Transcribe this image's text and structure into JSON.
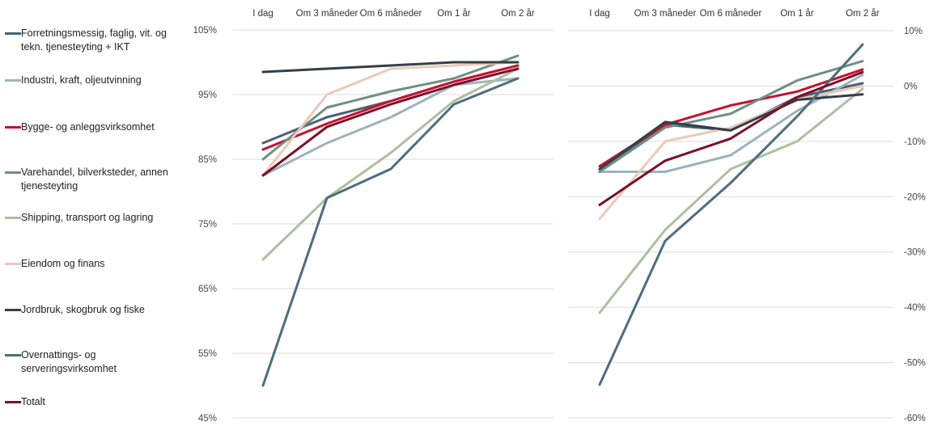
{
  "chart_data": [
    {
      "type": "line",
      "categories": [
        "I dag",
        "Om 3 måneder",
        "Om 6 måneder",
        "Om 1 år",
        "Om 2 år"
      ],
      "ylim": [
        45,
        105
      ],
      "yticks": [
        "45%",
        "55%",
        "65%",
        "75%",
        "85%",
        "95%",
        "105%"
      ],
      "ytick_values": [
        45,
        55,
        65,
        75,
        85,
        95,
        105
      ],
      "grid": true,
      "series": [
        {
          "name": "Forretningsmessig, faglig, vit. og tekn. tjenesteyting + IKT",
          "color": "#4b6173",
          "values": [
            87.5,
            91.5,
            94.0,
            97.0,
            99.5
          ]
        },
        {
          "name": "Industri, kraft, oljeutvinning",
          "color": "#9db3bd",
          "values": [
            82.5,
            87.5,
            91.5,
            96.5,
            97.5
          ]
        },
        {
          "name": "Bygge- og anleggsvirksomhet",
          "color": "#c8102e",
          "values": [
            86.5,
            90.5,
            94.0,
            97.0,
            99.5
          ]
        },
        {
          "name": "Varehandel, bilverksteder, annen tjenesteyting",
          "color": "#6f8f83",
          "values": [
            85.0,
            93.0,
            95.5,
            97.5,
            101.0
          ]
        },
        {
          "name": "Shipping, transport og lagring",
          "color": "#aebf9d",
          "values": [
            69.5,
            79.0,
            86.0,
            94.0,
            99.0
          ]
        },
        {
          "name": "Eiendom og finans",
          "color": "#ecc9b8",
          "values": [
            82.5,
            95.0,
            99.0,
            99.5,
            100.0
          ]
        },
        {
          "name": "Jordbruk, skogbruk og fiske",
          "color": "#333f48",
          "values": [
            98.5,
            99.0,
            99.5,
            100.0,
            100.0
          ]
        },
        {
          "name": "Overnattings- og serveringsvirksomhet",
          "color": "#4e6d7e",
          "values": [
            50.0,
            79.0,
            83.5,
            93.5,
            97.5
          ]
        },
        {
          "name": "Totalt",
          "color": "#7a0f2a",
          "values": [
            82.5,
            90.0,
            93.5,
            96.5,
            99.0
          ]
        }
      ]
    },
    {
      "type": "line",
      "categories": [
        "I dag",
        "Om 3 måneder",
        "Om 6 måneder",
        "Om 1 år",
        "Om 2 år"
      ],
      "ylim": [
        -60,
        10
      ],
      "yticks": [
        "10%",
        "0%",
        "-10%",
        "-20%",
        "-30%",
        "-40%",
        "-50%",
        "-60%"
      ],
      "ytick_values": [
        10,
        0,
        -10,
        -20,
        -30,
        -40,
        -50,
        -60
      ],
      "grid": true,
      "series": [
        {
          "name": "Forretningsmessig, faglig, vit. og tekn. tjenesteyting + IKT",
          "color": "#4b6173",
          "values": [
            -15.0,
            -7.0,
            -8.0,
            -2.0,
            0.5
          ]
        },
        {
          "name": "Industri, kraft, oljeutvinning",
          "color": "#9db3bd",
          "values": [
            -15.5,
            -15.5,
            -12.5,
            -4.5,
            2.0
          ]
        },
        {
          "name": "Bygge- og anleggsvirksomhet",
          "color": "#c8102e",
          "values": [
            -14.5,
            -7.0,
            -3.5,
            -1.0,
            3.0
          ]
        },
        {
          "name": "Varehandel, bilverksteder, annen tjenesteyting",
          "color": "#6f8f83",
          "values": [
            -15.5,
            -7.5,
            -5.0,
            1.0,
            4.5
          ]
        },
        {
          "name": "Shipping, transport og lagring",
          "color": "#aebf9d",
          "values": [
            -41.0,
            -26.0,
            -15.0,
            -10.0,
            -0.5
          ]
        },
        {
          "name": "Eiendom og finans",
          "color": "#ecc9b8",
          "values": [
            -24.0,
            -10.0,
            -7.5,
            -2.5,
            0.0
          ]
        },
        {
          "name": "Jordbruk, skogbruk og fiske",
          "color": "#333f48",
          "values": [
            -15.0,
            -6.5,
            -8.0,
            -2.5,
            -1.5
          ]
        },
        {
          "name": "Overnattings- og serveringsvirksomhet",
          "color": "#4e6d7e",
          "values": [
            -54.0,
            -28.0,
            -17.5,
            -5.5,
            7.5
          ]
        },
        {
          "name": "Totalt",
          "color": "#7a0f2a",
          "values": [
            -21.5,
            -13.5,
            -9.5,
            -2.0,
            2.5
          ]
        }
      ]
    }
  ]
}
